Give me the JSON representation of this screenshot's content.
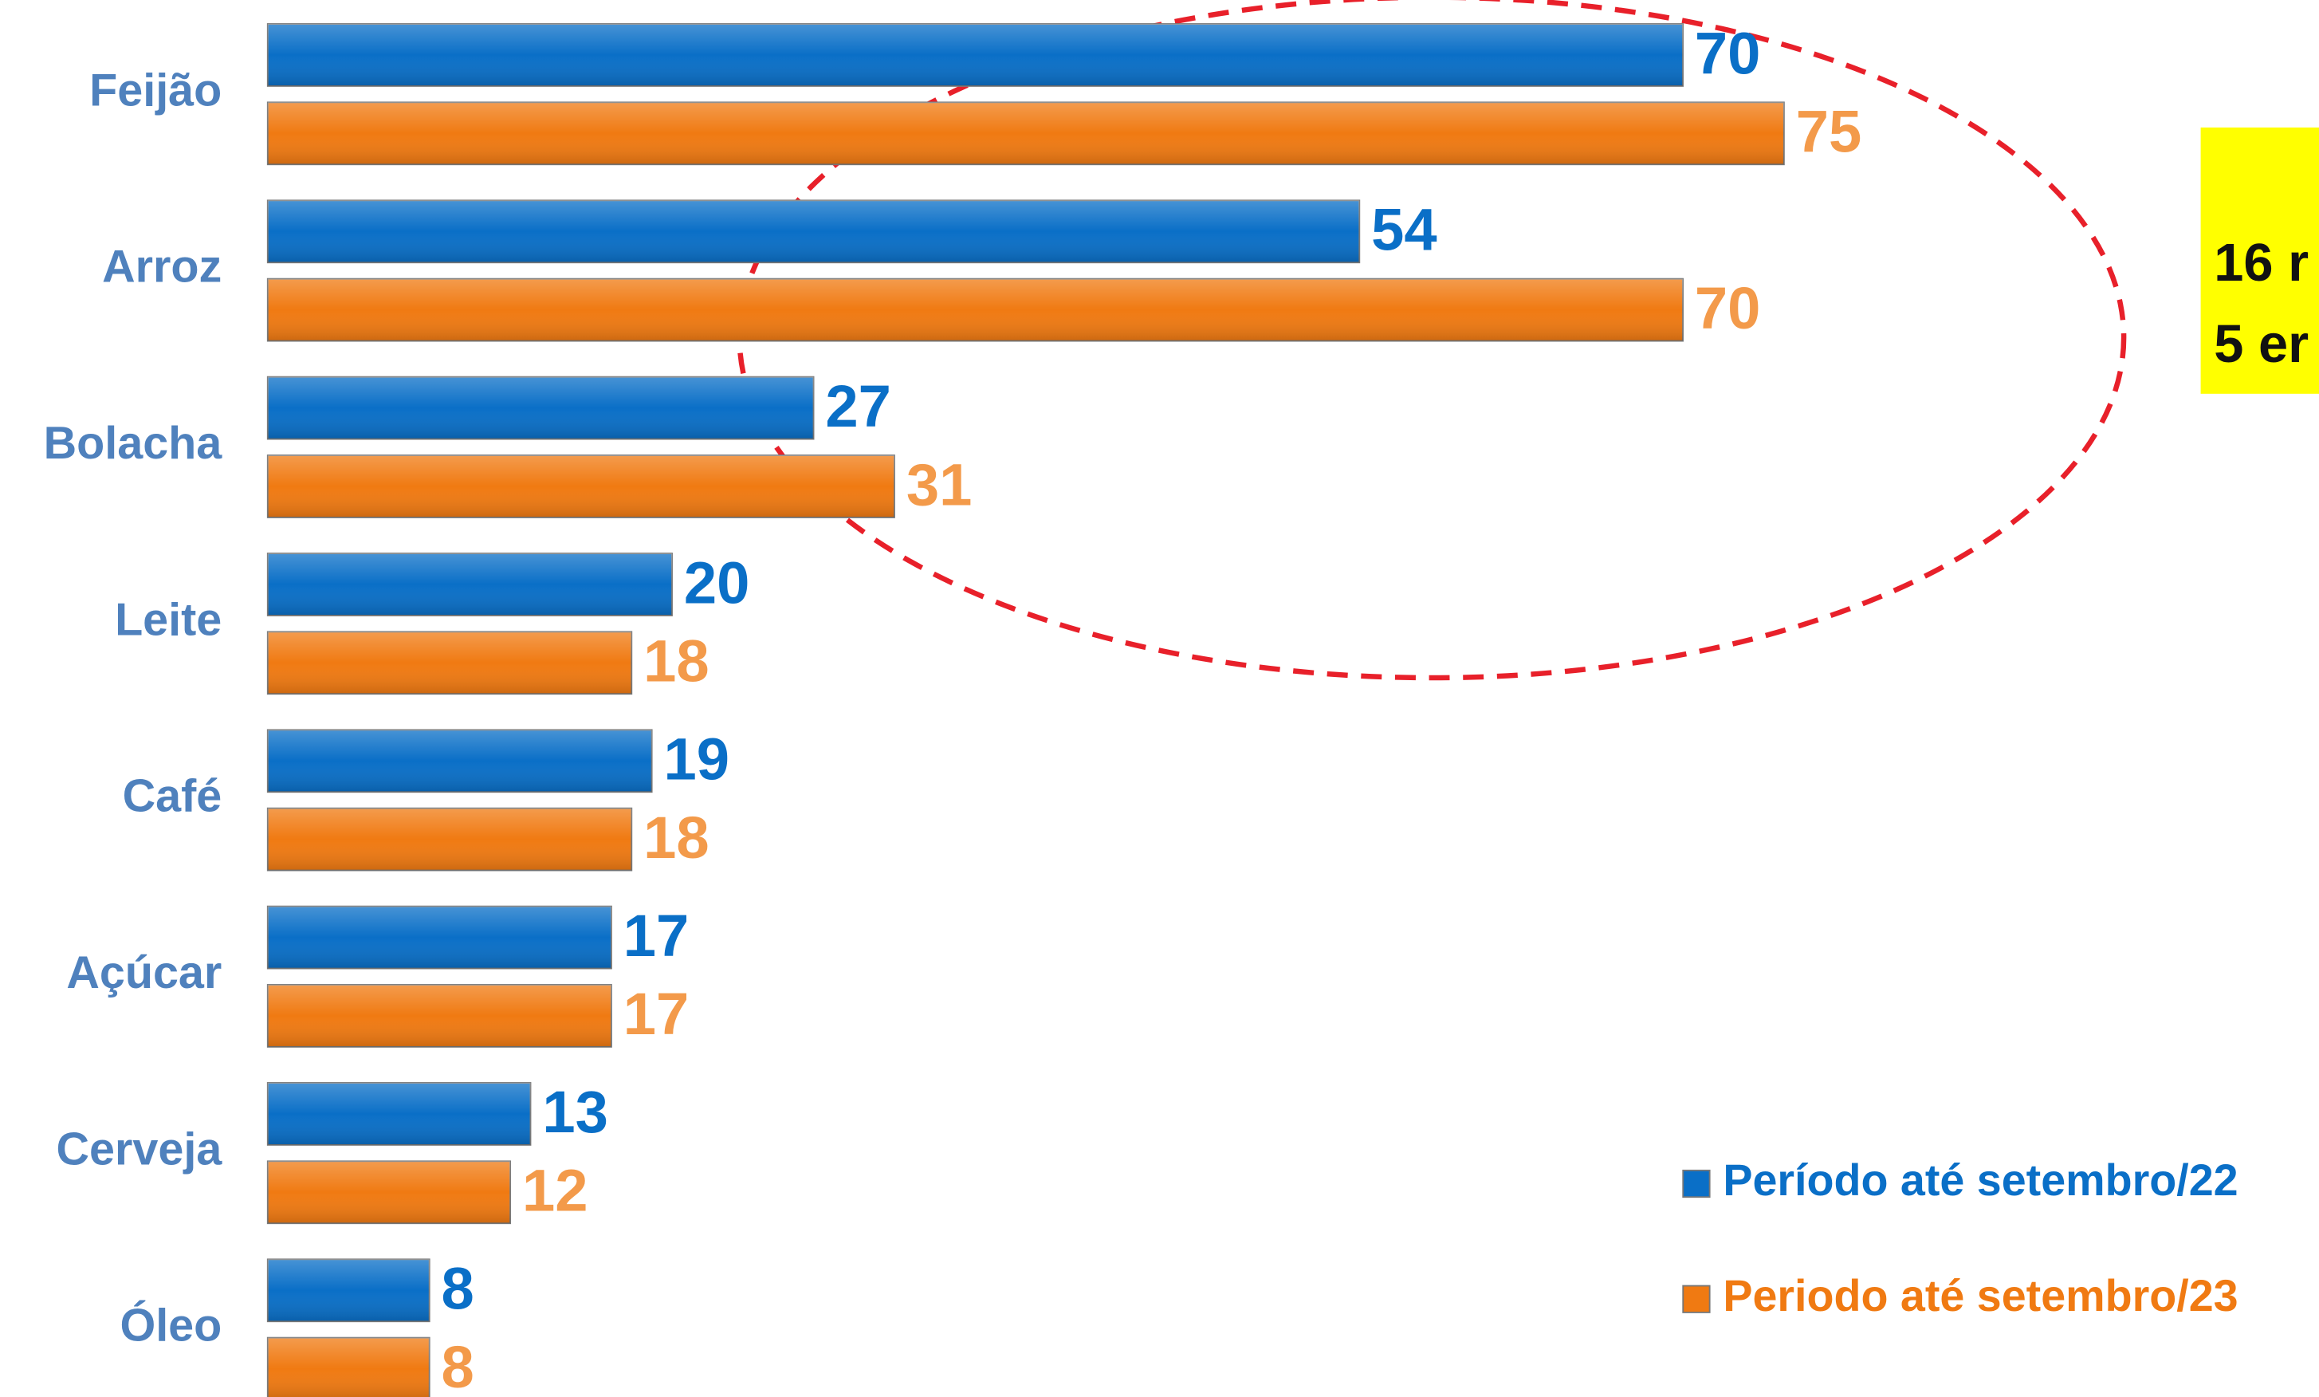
{
  "chart_data": {
    "type": "hbar",
    "categories": [
      "Feijão",
      "Arroz",
      "Bolacha",
      "Leite",
      "Café",
      "Açúcar",
      "Cerveja",
      "Óleo"
    ],
    "series": [
      {
        "name": "Período até setembro/22",
        "color": "#0a6fc7",
        "label_color": "#0a6fc7",
        "values": [
          70,
          54,
          27,
          20,
          19,
          17,
          13,
          8
        ]
      },
      {
        "name": "Periodo até setembro/23",
        "color": "#f07a12",
        "label_color": "#f39a4a",
        "values": [
          75,
          70,
          31,
          18,
          18,
          17,
          12,
          8
        ]
      }
    ],
    "annotations": [
      "16 r",
      "5 er"
    ]
  }
}
